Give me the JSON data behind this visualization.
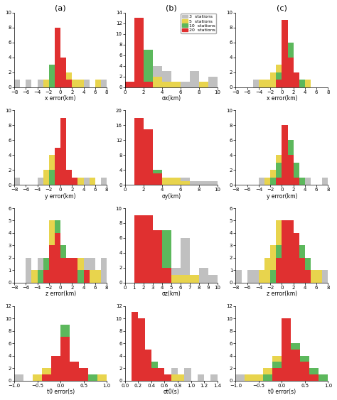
{
  "colors": {
    "gray": "#c0c0c0",
    "yellow": "#e8d44d",
    "green": "#5cb85c",
    "red": "#e03030"
  },
  "col_titles": [
    "(a)",
    "(b)",
    "(c)"
  ],
  "background": "white",
  "xlabels": [
    [
      "x error(km)",
      "σx(km)",
      "x error(km)"
    ],
    [
      "y error(km)",
      "σy(km)",
      "y error(km)"
    ],
    [
      "z error(km)",
      "σz(km)",
      "z error(km)"
    ],
    [
      "t0 error(s)",
      "σt0(s)",
      "t0 error(s)"
    ]
  ],
  "panels": {
    "r0c0": {
      "xlim": [
        -8,
        8
      ],
      "ylim": [
        0,
        10
      ],
      "yticks": [
        0,
        2,
        4,
        6,
        8,
        10
      ],
      "xticks": [
        -8,
        -6,
        -4,
        -2,
        0,
        2,
        4,
        6,
        8
      ],
      "bins": [
        -8,
        -7,
        -6,
        -5,
        -4,
        -3,
        -2,
        -1,
        0,
        1,
        2,
        3,
        4,
        5,
        6,
        7,
        8
      ],
      "gray": [
        1,
        0,
        1,
        0,
        1,
        0,
        1,
        1,
        1,
        0,
        1,
        0,
        1,
        0,
        0,
        1
      ],
      "yellow": [
        0,
        0,
        0,
        0,
        0,
        1,
        3,
        8,
        4,
        2,
        1,
        1,
        0,
        0,
        1,
        0
      ],
      "green": [
        0,
        0,
        0,
        0,
        0,
        0,
        3,
        8,
        2,
        1,
        0,
        0,
        0,
        0,
        0,
        0
      ],
      "red": [
        0,
        0,
        0,
        0,
        0,
        0,
        0,
        8,
        4,
        1,
        0,
        0,
        0,
        0,
        0,
        0
      ]
    },
    "r0c1": {
      "xlim": [
        0,
        10
      ],
      "ylim": [
        0,
        14
      ],
      "yticks": [
        0,
        2,
        4,
        6,
        8,
        10,
        12,
        14
      ],
      "xticks": [
        0,
        2,
        4,
        6,
        8,
        10
      ],
      "bins": [
        0,
        1,
        2,
        3,
        4,
        5,
        6,
        7,
        8,
        9,
        10
      ],
      "gray": [
        0,
        0,
        0,
        4,
        3,
        0,
        1,
        3,
        0,
        2
      ],
      "yellow": [
        0,
        3,
        4,
        2,
        1,
        1,
        0,
        0,
        1,
        0
      ],
      "green": [
        0,
        6,
        7,
        0,
        0,
        0,
        0,
        0,
        0,
        0
      ],
      "red": [
        1,
        13,
        1,
        0,
        0,
        0,
        0,
        0,
        0,
        0
      ]
    },
    "r0c2": {
      "xlim": [
        -8,
        8
      ],
      "ylim": [
        0,
        10
      ],
      "yticks": [
        0,
        2,
        4,
        6,
        8,
        10
      ],
      "xticks": [
        -8,
        -6,
        -4,
        -2,
        0,
        2,
        4,
        6,
        8
      ],
      "bins": [
        -8,
        -7,
        -6,
        -5,
        -4,
        -3,
        -2,
        -1,
        0,
        1,
        2,
        3,
        4,
        5,
        6,
        7,
        8
      ],
      "gray": [
        0,
        0,
        0,
        1,
        0,
        1,
        1,
        1,
        1,
        1,
        0,
        1,
        0,
        0,
        0,
        0
      ],
      "yellow": [
        0,
        0,
        0,
        0,
        1,
        1,
        2,
        3,
        3,
        3,
        2,
        1,
        1,
        0,
        0,
        0
      ],
      "green": [
        0,
        0,
        0,
        0,
        0,
        0,
        0,
        2,
        6,
        6,
        2,
        1,
        0,
        0,
        0,
        0
      ],
      "red": [
        0,
        0,
        0,
        0,
        0,
        0,
        0,
        1,
        9,
        4,
        2,
        0,
        0,
        0,
        0,
        0
      ]
    },
    "r1c0": {
      "xlim": [
        -8,
        8
      ],
      "ylim": [
        0,
        10
      ],
      "yticks": [
        0,
        2,
        4,
        6,
        8,
        10
      ],
      "xticks": [
        -8,
        -6,
        -4,
        -2,
        0,
        2,
        4,
        6,
        8
      ],
      "bins": [
        -8,
        -7,
        -6,
        -5,
        -4,
        -3,
        -2,
        -1,
        0,
        1,
        2,
        3,
        4,
        5,
        6,
        7,
        8
      ],
      "gray": [
        1,
        0,
        0,
        0,
        1,
        0,
        1,
        1,
        1,
        1,
        1,
        1,
        1,
        0,
        0,
        1
      ],
      "yellow": [
        0,
        0,
        0,
        0,
        0,
        2,
        4,
        5,
        3,
        2,
        1,
        1,
        0,
        1,
        0,
        0
      ],
      "green": [
        0,
        0,
        0,
        0,
        0,
        0,
        2,
        5,
        9,
        2,
        1,
        0,
        0,
        0,
        0,
        0
      ],
      "red": [
        0,
        0,
        0,
        0,
        0,
        0,
        0,
        5,
        9,
        2,
        1,
        0,
        0,
        0,
        0,
        0
      ]
    },
    "r1c1": {
      "xlim": [
        0,
        10
      ],
      "ylim": [
        0,
        20
      ],
      "yticks": [
        0,
        4,
        8,
        12,
        16,
        20
      ],
      "xticks": [
        0,
        2,
        4,
        6,
        8,
        10
      ],
      "bins": [
        0,
        1,
        2,
        3,
        4,
        5,
        6,
        7,
        8,
        9,
        10
      ],
      "gray": [
        0,
        1,
        2,
        2,
        2,
        2,
        2,
        1,
        1,
        1
      ],
      "yellow": [
        0,
        4,
        4,
        2,
        2,
        2,
        1,
        0,
        0,
        0
      ],
      "green": [
        0,
        15,
        14,
        4,
        0,
        0,
        0,
        0,
        0,
        0
      ],
      "red": [
        0,
        18,
        15,
        3,
        0,
        0,
        0,
        0,
        0,
        0
      ]
    },
    "r1c2": {
      "xlim": [
        -8,
        8
      ],
      "ylim": [
        0,
        10
      ],
      "yticks": [
        0,
        2,
        4,
        6,
        8,
        10
      ],
      "xticks": [
        -8,
        -6,
        -4,
        -2,
        0,
        2,
        4,
        6,
        8
      ],
      "bins": [
        -8,
        -7,
        -6,
        -5,
        -4,
        -3,
        -2,
        -1,
        0,
        1,
        2,
        3,
        4,
        5,
        6,
        7,
        8
      ],
      "gray": [
        0,
        0,
        0,
        0,
        1,
        1,
        2,
        2,
        2,
        1,
        1,
        1,
        1,
        0,
        0,
        1
      ],
      "yellow": [
        0,
        0,
        0,
        0,
        0,
        1,
        2,
        4,
        4,
        2,
        2,
        1,
        0,
        0,
        0,
        0
      ],
      "green": [
        0,
        0,
        0,
        0,
        0,
        0,
        1,
        3,
        7,
        6,
        3,
        1,
        0,
        0,
        0,
        0
      ],
      "red": [
        0,
        0,
        0,
        0,
        0,
        0,
        0,
        1,
        8,
        4,
        1,
        0,
        0,
        0,
        0,
        0
      ]
    },
    "r2c0": {
      "xlim": [
        -8,
        8
      ],
      "ylim": [
        0,
        6
      ],
      "yticks": [
        0,
        1,
        2,
        3,
        4,
        5,
        6
      ],
      "xticks": [
        -8,
        -6,
        -4,
        -2,
        0,
        2,
        4,
        6,
        8
      ],
      "bins": [
        -8,
        -7,
        -6,
        -5,
        -4,
        -3,
        -2,
        -1,
        0,
        1,
        2,
        3,
        4,
        5,
        6,
        7,
        8
      ],
      "gray": [
        0,
        0,
        2,
        0,
        2,
        2,
        2,
        2,
        2,
        2,
        2,
        2,
        2,
        2,
        0,
        2
      ],
      "yellow": [
        0,
        0,
        0,
        1,
        1,
        2,
        5,
        4,
        3,
        2,
        2,
        2,
        1,
        1,
        1,
        0
      ],
      "green": [
        0,
        0,
        0,
        0,
        1,
        2,
        3,
        5,
        3,
        2,
        1,
        1,
        1,
        0,
        0,
        0
      ],
      "red": [
        0,
        0,
        0,
        0,
        0,
        1,
        3,
        4,
        2,
        2,
        2,
        0,
        1,
        0,
        0,
        0
      ]
    },
    "r2c1": {
      "xlim": [
        0,
        10
      ],
      "ylim": [
        0,
        10
      ],
      "yticks": [
        0,
        2,
        4,
        6,
        8,
        10
      ],
      "xticks": [
        0,
        1,
        2,
        3,
        4,
        5,
        6,
        7,
        8,
        9,
        10
      ],
      "bins": [
        0,
        1,
        2,
        3,
        4,
        5,
        6,
        7,
        8,
        9,
        10
      ],
      "gray": [
        0,
        1,
        1,
        2,
        2,
        2,
        6,
        1,
        2,
        1
      ],
      "yellow": [
        0,
        2,
        4,
        4,
        2,
        1,
        1,
        1,
        0,
        0
      ],
      "green": [
        0,
        4,
        9,
        7,
        7,
        0,
        0,
        0,
        0,
        0
      ],
      "red": [
        0,
        9,
        9,
        7,
        2,
        0,
        0,
        0,
        0,
        0
      ]
    },
    "r2c2": {
      "xlim": [
        -8,
        8
      ],
      "ylim": [
        0,
        6
      ],
      "yticks": [
        0,
        1,
        2,
        3,
        4,
        5,
        6
      ],
      "xticks": [
        -8,
        -6,
        -4,
        -2,
        0,
        2,
        4,
        6,
        8
      ],
      "bins": [
        -8,
        -7,
        -6,
        -5,
        -4,
        -3,
        -2,
        -1,
        0,
        1,
        2,
        3,
        4,
        5,
        6,
        7,
        8
      ],
      "gray": [
        1,
        0,
        1,
        1,
        1,
        1,
        1,
        1,
        1,
        1,
        1,
        0,
        1,
        0,
        0,
        1
      ],
      "yellow": [
        0,
        0,
        0,
        0,
        1,
        2,
        3,
        5,
        5,
        2,
        2,
        1,
        1,
        1,
        1,
        0
      ],
      "green": [
        0,
        0,
        0,
        0,
        0,
        0,
        1,
        3,
        5,
        5,
        4,
        3,
        2,
        0,
        0,
        0
      ],
      "red": [
        0,
        0,
        0,
        0,
        0,
        0,
        0,
        2,
        5,
        5,
        4,
        2,
        1,
        0,
        0,
        0
      ]
    },
    "r3c0": {
      "xlim": [
        -1.0,
        1.0
      ],
      "ylim": [
        0,
        12
      ],
      "yticks": [
        0,
        2,
        4,
        6,
        8,
        10,
        12
      ],
      "xticks": [
        -1.0,
        -0.5,
        0.0,
        0.5,
        1.0
      ],
      "bins": [
        -1.0,
        -0.8,
        -0.6,
        -0.4,
        -0.2,
        0.0,
        0.2,
        0.4,
        0.6,
        0.8,
        1.0
      ],
      "gray": [
        1,
        0,
        0,
        1,
        1,
        1,
        1,
        1,
        0,
        0
      ],
      "yellow": [
        0,
        0,
        1,
        2,
        2,
        3,
        3,
        2,
        1,
        1
      ],
      "green": [
        0,
        0,
        0,
        1,
        2,
        9,
        3,
        2,
        1,
        0
      ],
      "red": [
        0,
        0,
        0,
        1,
        4,
        7,
        3,
        2,
        0,
        0
      ]
    },
    "r3c1": {
      "xlim": [
        0.0,
        1.4
      ],
      "ylim": [
        0,
        12
      ],
      "yticks": [
        0,
        2,
        4,
        6,
        8,
        10,
        12
      ],
      "xticks": [
        0.0,
        0.2,
        0.4,
        0.6,
        0.8,
        1.0,
        1.2,
        1.4
      ],
      "bins": [
        0.0,
        0.1,
        0.2,
        0.3,
        0.4,
        0.5,
        0.6,
        0.7,
        0.8,
        0.9,
        1.0,
        1.1,
        1.2,
        1.3,
        1.4
      ],
      "gray": [
        0,
        0,
        1,
        1,
        1,
        1,
        1,
        2,
        1,
        2,
        0,
        1,
        0,
        1
      ],
      "yellow": [
        0,
        1,
        3,
        3,
        2,
        2,
        1,
        1,
        1,
        0,
        0,
        0,
        0,
        0
      ],
      "green": [
        0,
        6,
        9,
        5,
        3,
        2,
        1,
        0,
        0,
        0,
        0,
        0,
        0,
        0
      ],
      "red": [
        0,
        11,
        10,
        5,
        2,
        2,
        1,
        0,
        0,
        0,
        0,
        0,
        0,
        0
      ]
    },
    "r3c2": {
      "xlim": [
        -1.0,
        1.0
      ],
      "ylim": [
        0,
        12
      ],
      "yticks": [
        0,
        2,
        4,
        6,
        8,
        10,
        12
      ],
      "xticks": [
        -1.0,
        -0.5,
        0.0,
        0.5,
        1.0
      ],
      "bins": [
        -1.0,
        -0.8,
        -0.6,
        -0.4,
        -0.2,
        0.0,
        0.2,
        0.4,
        0.6,
        0.8,
        1.0
      ],
      "gray": [
        1,
        0,
        1,
        1,
        1,
        2,
        1,
        1,
        0,
        1
      ],
      "yellow": [
        0,
        1,
        1,
        2,
        4,
        4,
        3,
        2,
        1,
        0
      ],
      "green": [
        0,
        0,
        0,
        1,
        3,
        7,
        6,
        4,
        2,
        1
      ],
      "red": [
        0,
        0,
        0,
        0,
        2,
        10,
        5,
        3,
        1,
        0
      ]
    }
  }
}
